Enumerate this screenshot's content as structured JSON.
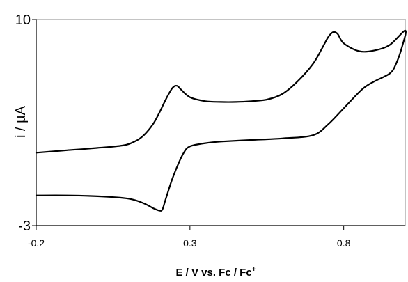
{
  "chart_data": {
    "type": "line",
    "title": "",
    "xlabel": "E / V vs. Fc / Fc",
    "xlabel_sup": "+",
    "ylabel": "i / µA",
    "xlim": [
      -0.2,
      1.0
    ],
    "ylim": [
      -3,
      10
    ],
    "x_ticks": [
      {
        "value": -0.2,
        "label": "-0.2"
      },
      {
        "value": 0.3,
        "label": "0.3"
      },
      {
        "value": 0.8,
        "label": "0.8"
      }
    ],
    "y_ticks": [
      {
        "value": 10,
        "label": "10"
      },
      {
        "value": -3,
        "label": "-3"
      }
    ],
    "grid": false,
    "legend": "none",
    "line_color": "#000000",
    "series": [
      {
        "name": "",
        "x": [
          -0.2,
          -0.1,
          0.0,
          0.08,
          0.12,
          0.15,
          0.18,
          0.2,
          0.22,
          0.24,
          0.25,
          0.26,
          0.27,
          0.3,
          0.35,
          0.4,
          0.45,
          0.5,
          0.55,
          0.6,
          0.65,
          0.7,
          0.73,
          0.75,
          0.765,
          0.78,
          0.8,
          0.85,
          0.9,
          0.95,
          1.0,
          0.99,
          0.97,
          0.95,
          0.9,
          0.86,
          0.8,
          0.75,
          0.7,
          0.6,
          0.5,
          0.4,
          0.35,
          0.3,
          0.28,
          0.26,
          0.24,
          0.22,
          0.21,
          0.2,
          0.18,
          0.15,
          0.1,
          0.0,
          -0.1,
          -0.2
        ],
        "y": [
          1.6,
          1.75,
          1.9,
          2.05,
          2.3,
          2.7,
          3.4,
          4.1,
          4.9,
          5.6,
          5.8,
          5.8,
          5.6,
          5.1,
          4.85,
          4.8,
          4.8,
          4.85,
          4.95,
          5.3,
          6.1,
          7.2,
          8.2,
          8.9,
          9.2,
          9.1,
          8.5,
          8.0,
          8.05,
          8.4,
          9.3,
          8.3,
          7.2,
          6.6,
          6.1,
          5.6,
          4.4,
          3.4,
          2.7,
          2.5,
          2.4,
          2.3,
          2.2,
          2.0,
          1.6,
          0.8,
          -0.2,
          -1.4,
          -2.0,
          -2.05,
          -1.9,
          -1.6,
          -1.3,
          -1.15,
          -1.1,
          -1.1
        ]
      }
    ]
  }
}
